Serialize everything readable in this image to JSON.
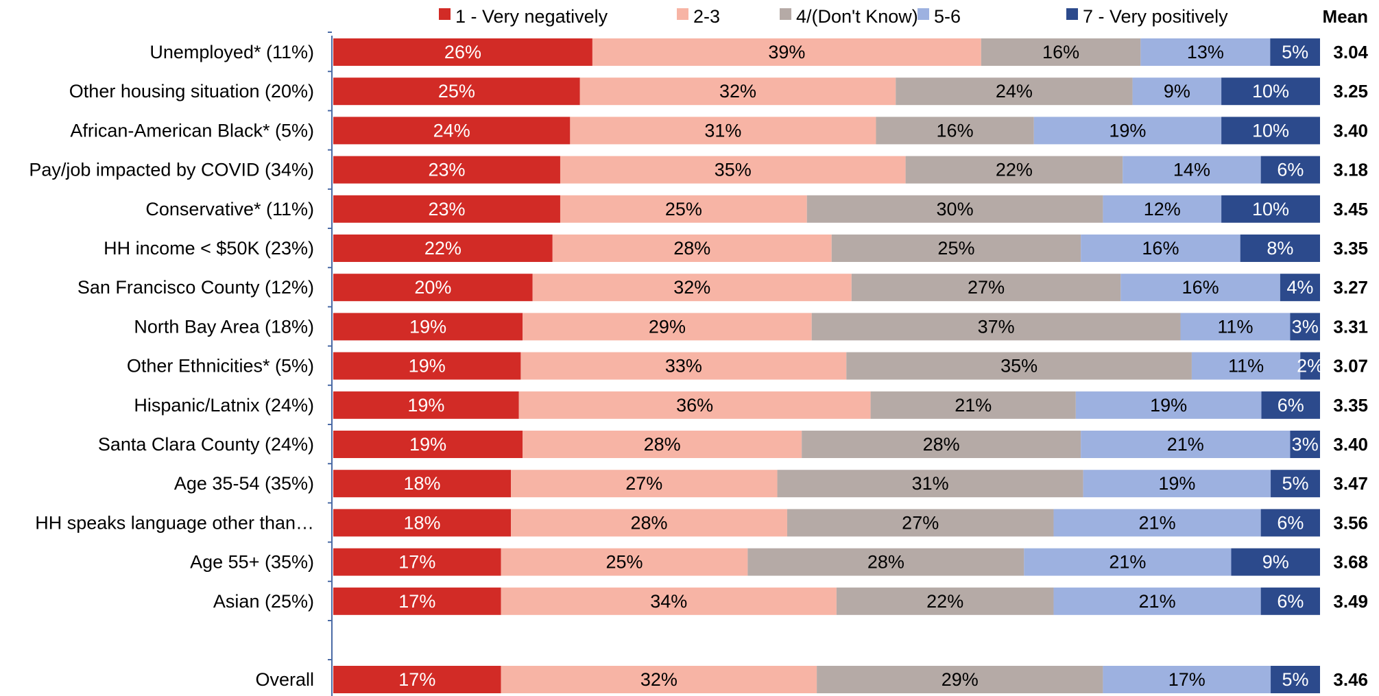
{
  "chart_data": {
    "type": "bar",
    "orientation": "horizontal",
    "stacked": true,
    "normalized": true,
    "categories": [
      "Unemployed* (11%)",
      "Other housing situation (20%)",
      "African-American Black* (5%)",
      "Pay/job impacted by COVID (34%)",
      "Conservative* (11%)",
      "HH income < $50K (23%)",
      "San Francisco County (12%)",
      "North Bay Area (18%)",
      "Other Ethnicities* (5%)",
      "Hispanic/Latnix (24%)",
      "Santa Clara County (24%)",
      "Age 35-54 (35%)",
      "HH speaks language other than…",
      "Age 55+ (35%)",
      "Asian (25%)",
      "Overall"
    ],
    "series": [
      {
        "name": "1 - Very negatively",
        "color": "#d22b26",
        "label_color": "#ffffff",
        "values": [
          26,
          25,
          24,
          23,
          23,
          22,
          20,
          19,
          19,
          19,
          19,
          18,
          18,
          17,
          17,
          17
        ],
        "labels": [
          "26%",
          "25%",
          "24%",
          "23%",
          "23%",
          "22%",
          "20%",
          "19%",
          "19%",
          "19%",
          "19%",
          "18%",
          "18%",
          "17%",
          "17%",
          "17%"
        ]
      },
      {
        "name": "2-3",
        "color": "#f7b4a5",
        "label_color": "#000000",
        "values": [
          39,
          32,
          31,
          35,
          25,
          28,
          32,
          29,
          33,
          36,
          28,
          27,
          28,
          25,
          34,
          32
        ],
        "labels": [
          "39%",
          "32%",
          "31%",
          "35%",
          "25%",
          "28%",
          "32%",
          "29%",
          "33%",
          "36%",
          "28%",
          "27%",
          "28%",
          "25%",
          "34%",
          "32%"
        ]
      },
      {
        "name": "4/(Don't Know)",
        "color": "#b5aaa6",
        "label_color": "#000000",
        "values": [
          16,
          24,
          16,
          22,
          30,
          25,
          27,
          37,
          35,
          21,
          28,
          31,
          27,
          28,
          22,
          29
        ],
        "labels": [
          "16%",
          "24%",
          "16%",
          "22%",
          "30%",
          "25%",
          "27%",
          "37%",
          "35%",
          "21%",
          "28%",
          "31%",
          "27%",
          "28%",
          "22%",
          "29%"
        ]
      },
      {
        "name": "5-6",
        "color": "#9db1e0",
        "label_color": "#000000",
        "values": [
          13,
          9,
          19,
          14,
          12,
          16,
          16,
          11,
          11,
          19,
          21,
          19,
          21,
          21,
          21,
          17
        ],
        "labels": [
          "13%",
          "9%",
          "19%",
          "14%",
          "12%",
          "16%",
          "16%",
          "11%",
          "11%",
          "19%",
          "21%",
          "19%",
          "21%",
          "21%",
          "21%",
          "17%"
        ]
      },
      {
        "name": "7 - Very positively",
        "color": "#2c4a8c",
        "label_color": "#ffffff",
        "values": [
          5,
          10,
          10,
          6,
          10,
          8,
          4,
          3,
          2,
          6,
          3,
          5,
          6,
          9,
          6,
          5
        ],
        "labels": [
          "5%",
          "10%",
          "10%",
          "6%",
          "10%",
          "8%",
          "4%",
          "3%",
          "2%",
          "6%",
          "3%",
          "5%",
          "6%",
          "9%",
          "6%",
          "5%"
        ]
      }
    ],
    "mean_header": "Mean",
    "means": [
      "3.04",
      "3.25",
      "3.40",
      "3.18",
      "3.45",
      "3.35",
      "3.27",
      "3.31",
      "3.07",
      "3.35",
      "3.40",
      "3.47",
      "3.56",
      "3.68",
      "3.49",
      "3.46"
    ],
    "xlim": [
      0,
      100
    ],
    "grid": false,
    "legend_position": "top"
  }
}
